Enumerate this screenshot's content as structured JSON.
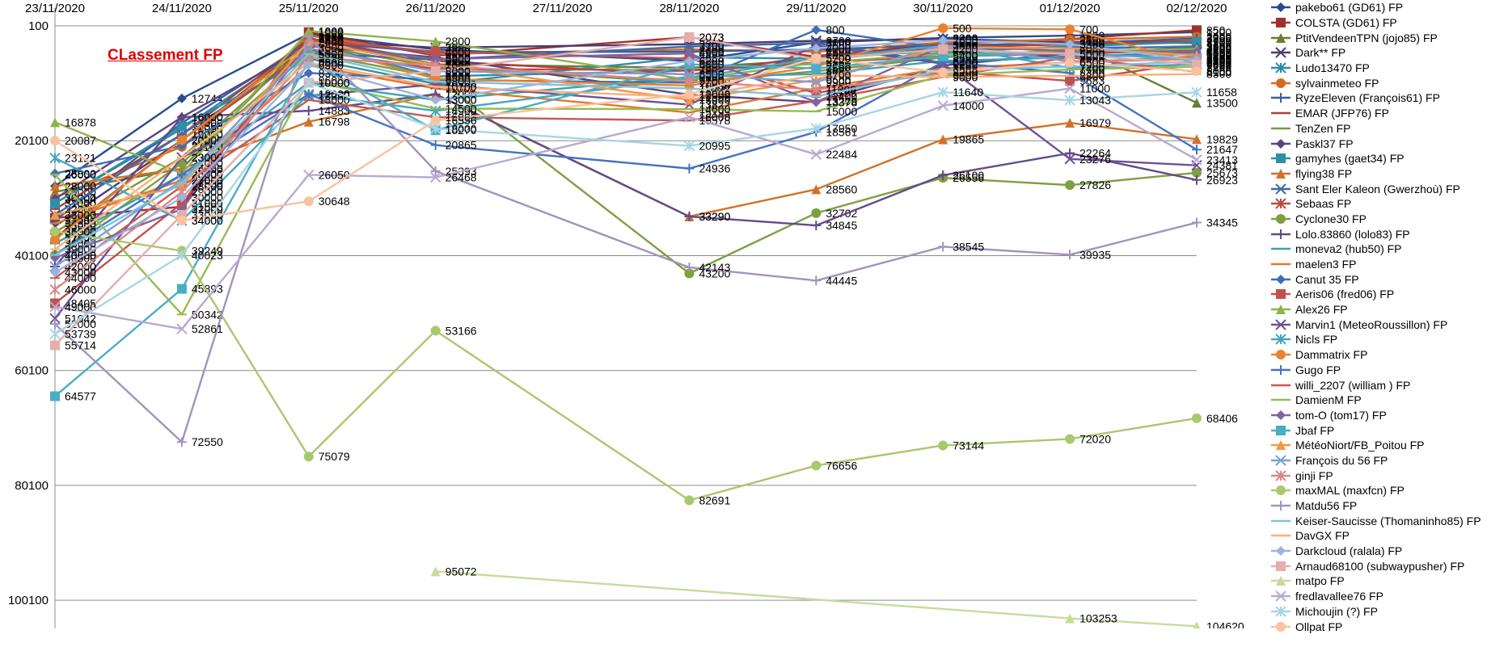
{
  "title": "CLassement FP",
  "chart_data": {
    "type": "line",
    "title": "CLassement FP",
    "x": [
      "23/11/2020",
      "24/11/2020",
      "25/11/2020",
      "26/11/2020",
      "27/11/2020",
      "28/11/2020",
      "29/11/2020",
      "30/11/2020",
      "01/12/2020",
      "02/12/2020"
    ],
    "y_ticks": [
      100,
      20100,
      40100,
      60100,
      80100,
      100100
    ],
    "ylim": [
      100,
      105000
    ],
    "y_reversed": true,
    "grid": true,
    "legend_position": "right",
    "series": [
      {
        "name": "pakebo61 (GD61) FP",
        "color": "#2a4b8d",
        "marker": "diamond",
        "values": [
          28000,
          12744,
          1500,
          4200,
          null,
          6200,
          3000,
          2200,
          1800,
          1200
        ]
      },
      {
        "name": "COLSTA (GD61) FP",
        "color": "#a0302e",
        "marker": "square",
        "values": [
          33547,
          31596,
          1200,
          5300,
          null,
          2073,
          5500,
          3200,
          2400,
          850
        ]
      },
      {
        "name": "PtitVendeenTPN (jojo85) FP",
        "color": "#6a7d35",
        "marker": "triangle",
        "values": [
          29000,
          24965,
          2200,
          6800,
          null,
          7400,
          6000,
          4100,
          3000,
          13500
        ]
      },
      {
        "name": "Dark** FP",
        "color": "#4d3b70",
        "marker": "x",
        "values": [
          35000,
          20000,
          2600,
          3900,
          null,
          3300,
          2700,
          2400,
          2900,
          3100
        ]
      },
      {
        "name": "Ludo13470 FP",
        "color": "#2f8aa8",
        "marker": "star",
        "values": [
          31000,
          18000,
          3100,
          8900,
          null,
          7900,
          6700,
          4800,
          3600,
          2200
        ]
      },
      {
        "name": "sylvainmeteo FP",
        "color": "#d46a1f",
        "marker": "circle",
        "values": [
          30000,
          21167,
          1800,
          5000,
          null,
          4200,
          4600,
          3000,
          2500,
          2000
        ]
      },
      {
        "name": "RyzeEleven (François61) FP",
        "color": "#3c5fa0",
        "marker": "plus",
        "values": [
          34000,
          17000,
          2900,
          4700,
          null,
          4600,
          4200,
          3500,
          3100,
          2300
        ]
      },
      {
        "name": "EMAR (JFP76) FP",
        "color": "#a8403c",
        "marker": "dash",
        "values": [
          32000,
          19000,
          2400,
          6200,
          null,
          8600,
          5300,
          3900,
          3300,
          2700
        ]
      },
      {
        "name": "TenZen  FP",
        "color": "#7a963c",
        "marker": "dash",
        "values": [
          36000,
          23000,
          3400,
          7200,
          null,
          10000,
          8000,
          5600,
          4200,
          3600
        ]
      },
      {
        "name": "Paskl37 FP",
        "color": "#5b437f",
        "marker": "diamond",
        "values": [
          30204,
          16000,
          3600,
          5600,
          null,
          12099,
          13378,
          7000,
          4900,
          3900
        ]
      },
      {
        "name": "gamyhes (gaet34) FP",
        "color": "#2e8fa6",
        "marker": "square",
        "values": [
          31000,
          17568,
          5800,
          10205,
          null,
          5600,
          5800,
          4400,
          3700,
          2900
        ]
      },
      {
        "name": "flying38 FP",
        "color": "#d0722a",
        "marker": "triangle",
        "values": [
          28000,
          25000,
          16798,
          12000,
          null,
          33290,
          28560,
          19865,
          16979,
          19829
        ]
      },
      {
        "name": "Sant Eler Kaleon (Gwerzhoù) FP",
        "color": "#3f6aa8",
        "marker": "x",
        "values": [
          33000,
          19000,
          4800,
          6000,
          null,
          3700,
          3100,
          6500,
          5400,
          4800
        ]
      },
      {
        "name": "Sebaas FP",
        "color": "#b84a40",
        "marker": "star",
        "values": [
          37000,
          20000,
          4300,
          7600,
          null,
          7800,
          6500,
          5400,
          5000,
          4300
        ]
      },
      {
        "name": "Cyclone30  FP",
        "color": "#7ea040",
        "marker": "circle",
        "values": [
          40000,
          24000,
          4800,
          9000,
          null,
          43200,
          32702,
          26556,
          27826,
          25673
        ]
      },
      {
        "name": "Lolo.83860 (lolo83) FP",
        "color": "#634a8a",
        "marker": "plus",
        "values": [
          42000,
          16000,
          14883,
          12000,
          null,
          33290,
          34845,
          26100,
          22264,
          26923
        ]
      },
      {
        "name": "moneva2 (hub50) FP",
        "color": "#3aa2b2",
        "marker": "dash",
        "values": [
          38000,
          26000,
          10000,
          13000,
          null,
          9000,
          8500,
          6200,
          5600,
          5000
        ]
      },
      {
        "name": "maelen3  FP",
        "color": "#e07a2c",
        "marker": "dash",
        "values": [
          34500,
          27000,
          7000,
          11000,
          null,
          15195,
          11000,
          7500,
          6500,
          5400
        ]
      },
      {
        "name": "Canut 35  FP",
        "color": "#3e6fb3",
        "marker": "diamond",
        "values": [
          25800,
          21000,
          8300,
          9500,
          null,
          10000,
          800,
          4000,
          3900,
          3800
        ]
      },
      {
        "name": "Aeris06 (fred06) FP",
        "color": "#c0504d",
        "marker": "square",
        "values": [
          48405,
          31000,
          2500,
          4600,
          null,
          5800,
          11796,
          8000,
          9683,
          6400
        ]
      },
      {
        "name": "Alex26 FP",
        "color": "#8fb24a",
        "marker": "triangle",
        "values": [
          16878,
          25800,
          1000,
          2800,
          null,
          9500,
          6500,
          5000,
          4600,
          4100
        ]
      },
      {
        "name": "Marvin1 (MeteoRoussillon) FP",
        "color": "#6d5197",
        "marker": "x",
        "values": [
          51042,
          23000,
          12250,
          10300,
          null,
          13822,
          3500,
          6700,
          23276,
          24381
        ]
      },
      {
        "name": "Nicls FP",
        "color": "#44a7c0",
        "marker": "star",
        "values": [
          23121,
          34000,
          12000,
          14900,
          null,
          9200,
          5800,
          3600,
          7400,
          6800
        ]
      },
      {
        "name": "Dammatrix FP",
        "color": "#e8822e",
        "marker": "circle",
        "values": [
          37323,
          20000,
          3200,
          9300,
          null,
          10500,
          7200,
          500,
          700,
          6600
        ]
      },
      {
        "name": "Gugo FP",
        "color": "#4472c4",
        "marker": "plus",
        "values": [
          40000,
          26000,
          12000,
          20865,
          null,
          24936,
          18561,
          6400,
          8300,
          21647
        ]
      },
      {
        "name": "willi_2207 (william ) FP",
        "color": "#c55a56",
        "marker": "dash",
        "values": [
          44000,
          28000,
          13000,
          16000,
          null,
          16578,
          13200,
          9000,
          5600,
          8100
        ]
      },
      {
        "name": "DamienM FP",
        "color": "#98ba52",
        "marker": "dash",
        "values": [
          26000,
          50342,
          9600,
          14500,
          null,
          14600,
          15000,
          8700,
          7700,
          7200
        ]
      },
      {
        "name": "tom-O (tom17) FP",
        "color": "#8064a2",
        "marker": "diamond",
        "values": [
          40500,
          32000,
          3200,
          5900,
          null,
          4900,
          13378,
          3600,
          4500,
          4600
        ]
      },
      {
        "name": "Jbaf FP",
        "color": "#4bacc6",
        "marker": "square",
        "values": [
          64577,
          45893,
          6200,
          18270,
          null,
          6800,
          7500,
          5400,
          4800,
          6000
        ]
      },
      {
        "name": "MétéoNiort/FB_Poitou FP",
        "color": "#f79646",
        "marker": "triangle",
        "values": [
          33000,
          28000,
          2800,
          6900,
          null,
          13000,
          9500,
          3800,
          4000,
          5200
        ]
      },
      {
        "name": "François du 56 FP",
        "color": "#7f9dd8",
        "marker": "x",
        "values": [
          42000,
          27000,
          4000,
          8000,
          null,
          8500,
          9900,
          3400,
          6300,
          5700
        ]
      },
      {
        "name": "ginji FP",
        "color": "#d98884",
        "marker": "star",
        "values": [
          46000,
          29000,
          5600,
          7000,
          null,
          9700,
          11200,
          8400,
          6400,
          5900
        ]
      },
      {
        "name": "maxMAL (maxfcn) FP",
        "color": "#aac86e",
        "marker": "circle",
        "values": [
          35900,
          39249,
          75079,
          53166,
          null,
          82691,
          76656,
          73144,
          72020,
          68406
        ]
      },
      {
        "name": "Matdu56 FP",
        "color": "#a293be",
        "marker": "plus",
        "values": [
          52000,
          72550,
          2000,
          25393,
          null,
          42143,
          44445,
          38545,
          39935,
          34345
        ]
      },
      {
        "name": "Keiser-Saucisse (Thomaninho85) FP",
        "color": "#7fc3d6",
        "marker": "dash",
        "values": [
          40000,
          27500,
          5000,
          9800,
          null,
          11000,
          12400,
          7800,
          7200,
          6300
        ]
      },
      {
        "name": "DavGX FP",
        "color": "#f9b07e",
        "marker": "dash",
        "values": [
          39000,
          23000,
          6500,
          10700,
          null,
          12500,
          8700,
          9000,
          8800,
          8500
        ]
      },
      {
        "name": "Darkcloud (ralala) FP",
        "color": "#9bb4e0",
        "marker": "diamond",
        "values": [
          43000,
          30000,
          6900,
          13000,
          null,
          6200,
          4000,
          2600,
          3300,
          6100
        ]
      },
      {
        "name": "Arnaud68100 (subwaypusher) FP",
        "color": "#e4aeac",
        "marker": "square",
        "values": [
          55714,
          33000,
          10000,
          8000,
          null,
          2073,
          5900,
          4200,
          5000,
          6827
        ]
      },
      {
        "name": "matpo FP",
        "color": "#c6dc9a",
        "marker": "triangle",
        "values": [
          null,
          null,
          null,
          95072,
          null,
          null,
          null,
          null,
          103253,
          104620
        ]
      },
      {
        "name": "fredlavallee76 FP",
        "color": "#b9a9d0",
        "marker": "x",
        "values": [
          49000,
          52861,
          26050,
          26468,
          null,
          16000,
          22484,
          14000,
          11000,
          23413
        ]
      },
      {
        "name": "Michoujin (?) FP",
        "color": "#a6d6e4",
        "marker": "star",
        "values": [
          53739,
          40023,
          10000,
          18000,
          null,
          20995,
          17950,
          11640,
          13043,
          11658
        ]
      },
      {
        "name": "Ollpat FP",
        "color": "#f9c2a0",
        "marker": "circle",
        "values": [
          20087,
          34000,
          30648,
          16556,
          null,
          12000,
          5700,
          8200,
          6500,
          8000
        ]
      }
    ]
  }
}
